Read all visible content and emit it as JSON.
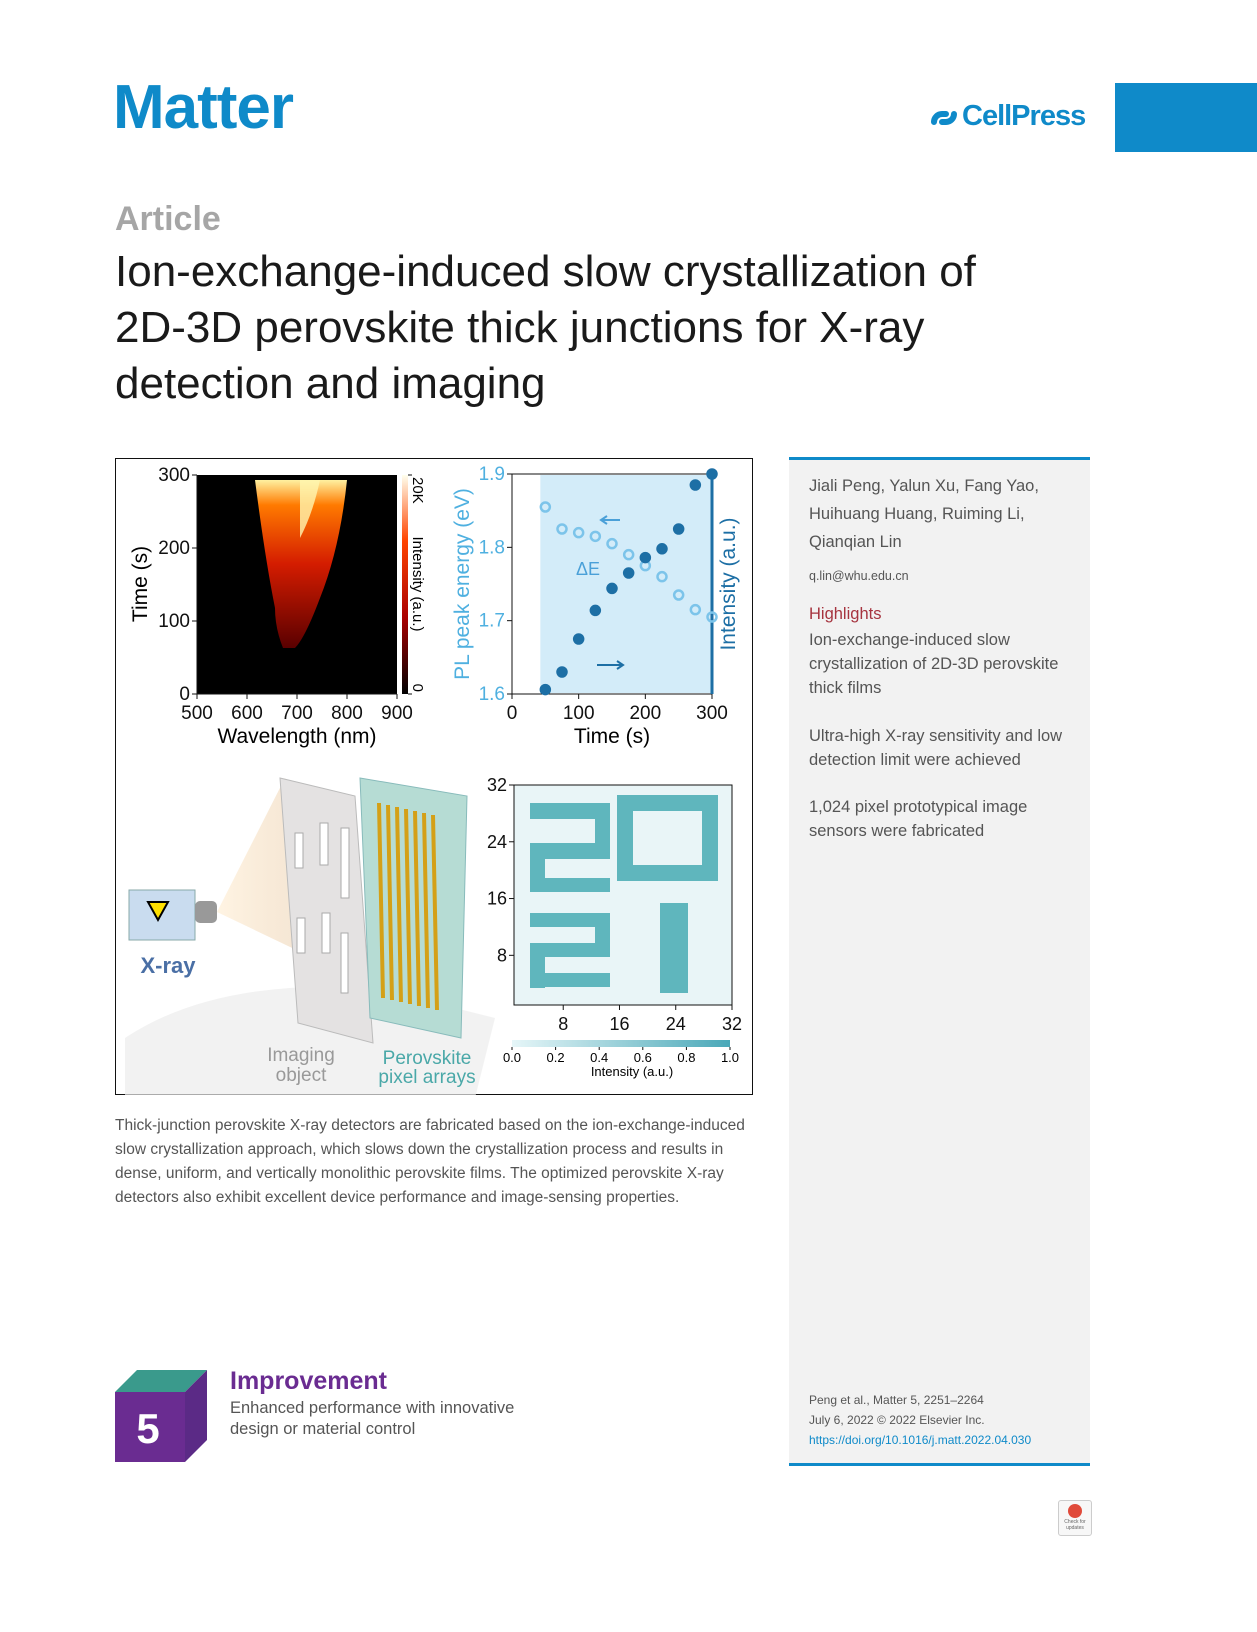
{
  "header": {
    "journal": "Matter",
    "publisher": "CellPress"
  },
  "article_type": "Article",
  "title": [
    "Ion-exchange-induced slow crystallization of",
    "2D-3D perovskite thick junctions for X-ray",
    "detection and imaging"
  ],
  "graphical_abstract": {
    "heatmap": {
      "xlabel": "Wavelength (nm)",
      "ylabel": "Time (s)",
      "xlim": [
        500,
        900
      ],
      "xticks": [
        500,
        600,
        700,
        800,
        900
      ],
      "ylim": [
        0,
        300
      ],
      "yticks": [
        0,
        100,
        200,
        300
      ],
      "colorbar_label": "Intensity (a.u.)",
      "colorbar_ticks": [
        0,
        {
          "value": 20000,
          "label": "20K"
        }
      ]
    },
    "pl": {
      "xlabel": "Time (s)",
      "ylabel": "PL peak energy (eV)",
      "y2label": "Intensity (a.u.)",
      "xlim": [
        0,
        300
      ],
      "xticks": [
        0,
        100,
        200,
        300
      ],
      "ylim": [
        1.6,
        1.9
      ],
      "yticks": [
        1.6,
        1.7,
        1.8,
        1.9
      ],
      "y2lim": [
        0,
        1
      ],
      "annotation": "ΔE",
      "x": [
        50,
        75,
        100,
        125,
        150,
        175,
        200,
        225,
        250,
        275,
        300
      ],
      "series": [
        {
          "name": "PL peak energy (eV)",
          "color": "#7cc4ea",
          "values": [
            1.855,
            1.825,
            1.82,
            1.815,
            1.805,
            1.79,
            1.775,
            1.76,
            1.735,
            1.715,
            1.705
          ]
        },
        {
          "name": "Intensity (a.u.)",
          "color": "#1d6fa5",
          "axis": "y2",
          "values": [
            0.02,
            0.1,
            0.25,
            0.38,
            0.48,
            0.55,
            0.62,
            0.66,
            0.75,
            0.95,
            1.0
          ]
        }
      ]
    },
    "illustration": {
      "source": "X-ray",
      "object": [
        "Imaging",
        "object"
      ],
      "detector": [
        "Perovskite",
        "pixel arrays"
      ]
    },
    "image": {
      "xlim": [
        1,
        32
      ],
      "xticks": [
        8,
        16,
        24,
        32
      ],
      "ylim": [
        1,
        32
      ],
      "yticks": [
        8,
        16,
        24,
        32
      ],
      "colorbar_label": "Intensity (a.u.)",
      "colorbar_ticks": [
        {
          "value": 0,
          "label": "0.0"
        },
        0.2,
        0.4,
        0.6,
        0.8,
        {
          "value": 1,
          "label": "1.0"
        }
      ]
    }
  },
  "caption": "Thick-junction perovskite X-ray detectors are fabricated based on the ion-exchange-induced slow crystallization approach, which slows down the crystallization process and results in dense, uniform, and vertically monolithic perovskite films. The optimized perovskite X-ray detectors also exhibit excellent device performance and image-sensing properties.",
  "sidebar": {
    "authors": "Jiali Peng, Yalun Xu, Fang Yao, Huihuang Huang, Ruiming Li, Qianqian Lin",
    "email": "q.lin@whu.edu.cn",
    "highlights_heading": "Highlights",
    "highlights": [
      "Ion-exchange-induced slow crystallization of 2D-3D perovskite thick films",
      "Ultra-high X-ray sensitivity and low detection limit were achieved",
      "1,024 pixel prototypical image sensors were fabricated"
    ],
    "citation": [
      "Peng et al., Matter 5, 2251–2264",
      "July 6, 2022 © 2022 Elsevier Inc."
    ],
    "doi": "https://doi.org/10.1016/j.matt.2022.04.030"
  },
  "badge": {
    "number": 5,
    "title": "Improvement",
    "description": "Enhanced performance with innovative design or material control"
  },
  "check_updates": "Check for updates"
}
